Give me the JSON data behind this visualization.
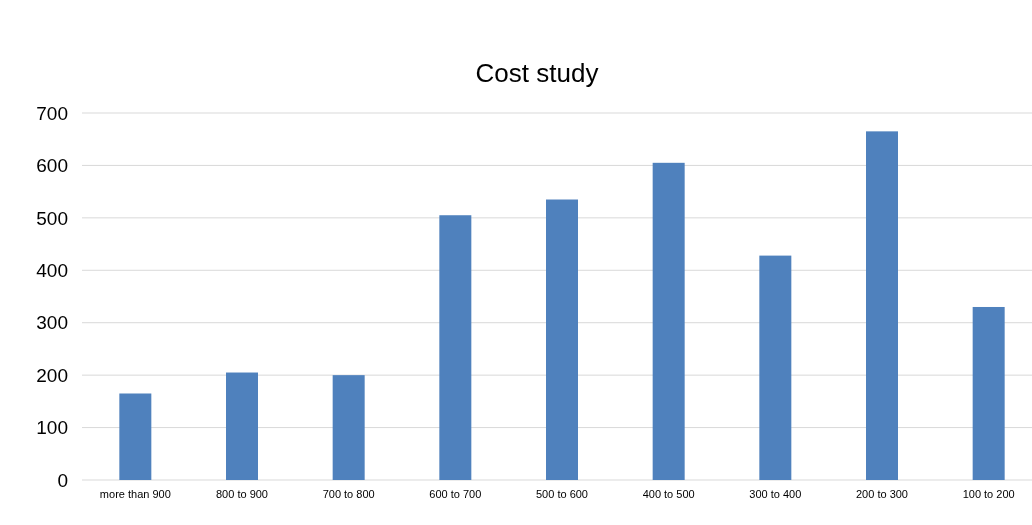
{
  "chart_data": {
    "type": "bar",
    "title": "Cost study",
    "categories": [
      "more than 900",
      "800 to 900",
      "700 to 800",
      "600 to 700",
      "500 to 600",
      "400 to 500",
      "300 to 400",
      "200 to 300",
      "100 to 200"
    ],
    "values": [
      165,
      205,
      200,
      505,
      535,
      605,
      428,
      665,
      330
    ],
    "color": "#4f81bd",
    "ylim": [
      0,
      700
    ],
    "yticks": [
      0,
      100,
      200,
      300,
      400,
      500,
      600,
      700
    ],
    "grid": "y"
  }
}
